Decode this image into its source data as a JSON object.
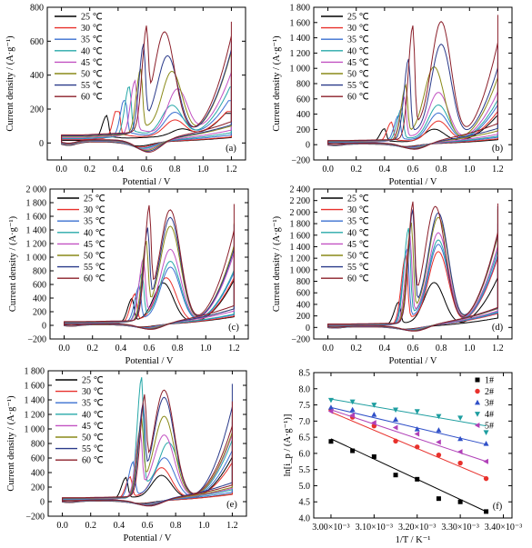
{
  "legend_labels": [
    "25 ℃",
    "30 ℃",
    "35 ℃",
    "40 ℃",
    "45 ℃",
    "50 ℃",
    "55 ℃",
    "60 ℃"
  ],
  "series_colors": [
    "#000000",
    "#e8312c",
    "#3a6fd0",
    "#27a8a8",
    "#c252c2",
    "#8a8a18",
    "#2a3a8a",
    "#8b1f2a"
  ],
  "arrhenius_colors": [
    "#000000",
    "#e8312c",
    "#3050c8",
    "#1e9ea0",
    "#b040b8"
  ],
  "arrhenius_markers": [
    "square",
    "circle",
    "triangle-up",
    "triangle-down",
    "triangle-left"
  ],
  "chart_data": [
    {
      "panel": "(a)",
      "type": "line",
      "xlabel": "Potential / V",
      "ylabel": "Current density / (A·g⁻¹)",
      "xlim": [
        -0.1,
        1.3
      ],
      "ylim": [
        -100,
        800
      ],
      "xticks": [
        "0.0",
        "0.2",
        "0.4",
        "0.6",
        "0.8",
        "1.0",
        "1.2"
      ],
      "yticks": [
        "0",
        "200",
        "400",
        "600",
        "800"
      ],
      "x_tick_values": [
        0,
        0.2,
        0.4,
        0.6,
        0.8,
        1.0,
        1.2
      ],
      "y_tick_values": [
        0,
        200,
        400,
        600,
        800
      ],
      "x_max": 1.2,
      "x_min": 0.0,
      "series": [
        {
          "name": "25 ℃",
          "p1": [
            0.32,
            140
          ],
          "p2": [
            0.85,
            40
          ],
          "end": 175,
          "rev": 30
        },
        {
          "name": "30 ℃",
          "p1": [
            0.4,
            200
          ],
          "p2": [
            0.8,
            90
          ],
          "end": 185,
          "rev": 40
        },
        {
          "name": "35 ℃",
          "p1": [
            0.45,
            240
          ],
          "p2": [
            0.8,
            130
          ],
          "end": 250,
          "rev": 50
        },
        {
          "name": "40 ℃",
          "p1": [
            0.48,
            300
          ],
          "p2": [
            0.78,
            170
          ],
          "end": 330,
          "rev": 55
        },
        {
          "name": "45 ℃",
          "p1": [
            0.52,
            320
          ],
          "p2": [
            0.82,
            260
          ],
          "end": 420,
          "rev": 65
        },
        {
          "name": "50 ℃",
          "p1": [
            0.56,
            380
          ],
          "p2": [
            0.78,
            360
          ],
          "end": 570,
          "rev": 75
        },
        {
          "name": "55 ℃",
          "p1": [
            0.58,
            500
          ],
          "p2": [
            0.75,
            445
          ],
          "end": 600,
          "rev": 85
        },
        {
          "name": "60 ℃",
          "p1": [
            0.6,
            520
          ],
          "p2": [
            0.73,
            575
          ],
          "end": 715,
          "rev": 95
        }
      ]
    },
    {
      "panel": "(b)",
      "type": "line",
      "xlabel": "Potential / V",
      "ylabel": "Current density / (A·g⁻¹)",
      "xlim": [
        -0.1,
        1.3
      ],
      "ylim": [
        -200,
        1800
      ],
      "xticks": [
        "0.0",
        "0.2",
        "0.4",
        "0.6",
        "0.8",
        "1.0",
        "1.2"
      ],
      "yticks": [
        "−200",
        "0",
        "200",
        "400",
        "600",
        "800",
        "1 000",
        "1 200",
        "1 400",
        "1 600",
        "1 800"
      ],
      "x_tick_values": [
        0,
        0.2,
        0.4,
        0.6,
        0.8,
        1.0,
        1.2
      ],
      "y_tick_values": [
        -200,
        0,
        200,
        400,
        600,
        800,
        1000,
        1200,
        1400,
        1600,
        1800
      ],
      "x_max": 1.2,
      "x_min": 0.0,
      "series": [
        {
          "name": "25 ℃",
          "p1": [
            0.4,
            180
          ],
          "p2": [
            0.75,
            160
          ],
          "end": 380,
          "rev": 40
        },
        {
          "name": "30 ℃",
          "p1": [
            0.45,
            260
          ],
          "p2": [
            0.78,
            260
          ],
          "end": 450,
          "rev": 50
        },
        {
          "name": "35 ℃",
          "p1": [
            0.5,
            340
          ],
          "p2": [
            0.78,
            360
          ],
          "end": 560,
          "rev": 60
        },
        {
          "name": "40 ℃",
          "p1": [
            0.52,
            420
          ],
          "p2": [
            0.78,
            460
          ],
          "end": 650,
          "rev": 70
        },
        {
          "name": "45 ℃",
          "p1": [
            0.54,
            560
          ],
          "p2": [
            0.78,
            620
          ],
          "end": 800,
          "rev": 80
        },
        {
          "name": "50 ℃",
          "p1": [
            0.55,
            700
          ],
          "p2": [
            0.75,
            950
          ],
          "end": 1080,
          "rev": 90
        },
        {
          "name": "55 ℃",
          "p1": [
            0.57,
            1050
          ],
          "p2": [
            0.8,
            1240
          ],
          "end": 1290,
          "rev": 100
        },
        {
          "name": "60 ℃",
          "p1": [
            0.6,
            1460
          ],
          "p2": [
            0.8,
            1530
          ],
          "end": 1700,
          "rev": 110
        }
      ]
    },
    {
      "panel": "(c)",
      "type": "line",
      "xlabel": "Potential / V",
      "ylabel": "Current density / (A·g⁻¹)",
      "xlim": [
        -0.1,
        1.3
      ],
      "ylim": [
        -200,
        2000
      ],
      "xticks": [
        "0.0",
        "0.2",
        "0.4",
        "0.6",
        "0.8",
        "1.0",
        "1.2"
      ],
      "yticks": [
        "−200",
        "0",
        "200",
        "400",
        "600",
        "800",
        "1 000",
        "1 200",
        "1 400",
        "1 600",
        "1 800",
        "2 000"
      ],
      "x_tick_values": [
        0,
        0.2,
        0.4,
        0.6,
        0.8,
        1.0,
        1.2
      ],
      "y_tick_values": [
        -200,
        0,
        200,
        400,
        600,
        800,
        1000,
        1200,
        1400,
        1600,
        1800,
        2000
      ],
      "x_max": 1.2,
      "x_min": 0.0,
      "series": [
        {
          "name": "25 ℃",
          "p1": [
            0.48,
            360
          ],
          "p2": [
            0.7,
            580
          ],
          "end": 780,
          "rev": 40
        },
        {
          "name": "30 ℃",
          "p1": [
            0.5,
            420
          ],
          "p2": [
            0.72,
            650
          ],
          "end": 830,
          "rev": 50
        },
        {
          "name": "35 ℃",
          "p1": [
            0.53,
            520
          ],
          "p2": [
            0.75,
            800
          ],
          "end": 950,
          "rev": 60
        },
        {
          "name": "40 ℃",
          "p1": [
            0.55,
            700
          ],
          "p2": [
            0.75,
            880
          ],
          "end": 1000,
          "rev": 70
        },
        {
          "name": "45 ℃",
          "p1": [
            0.56,
            900
          ],
          "p2": [
            0.75,
            1050
          ],
          "end": 1300,
          "rev": 80
        },
        {
          "name": "50 ℃",
          "p1": [
            0.58,
            1100
          ],
          "p2": [
            0.75,
            1380
          ],
          "end": 1500,
          "rev": 90
        },
        {
          "name": "55 ℃",
          "p1": [
            0.59,
            1250
          ],
          "p2": [
            0.75,
            1500
          ],
          "end": 1480,
          "rev": 100
        },
        {
          "name": "60 ℃",
          "p1": [
            0.6,
            1520
          ],
          "p2": [
            0.75,
            1600
          ],
          "end": 1780,
          "rev": 110
        }
      ]
    },
    {
      "panel": "(d)",
      "type": "line",
      "xlabel": "Potential / V",
      "ylabel": "Current density / (A·g⁻¹)",
      "xlim": [
        -0.1,
        1.3
      ],
      "ylim": [
        -200,
        2400
      ],
      "xticks": [
        "0.0",
        "0.2",
        "0.4",
        "0.6",
        "0.8",
        "1.0",
        "1.2"
      ],
      "yticks": [
        "−200",
        "0",
        "200",
        "400",
        "600",
        "800",
        "1 000",
        "1 200",
        "1 400",
        "1 600",
        "1 800",
        "2 000",
        "2 200",
        "2 400"
      ],
      "x_tick_values": [
        0,
        0.2,
        0.4,
        0.6,
        0.8,
        1.0,
        1.2
      ],
      "y_tick_values": [
        -200,
        0,
        200,
        400,
        600,
        800,
        1000,
        1200,
        1400,
        1600,
        1800,
        2000,
        2200,
        2400
      ],
      "x_max": 1.2,
      "x_min": 0.0,
      "series": [
        {
          "name": "25 ℃",
          "p1": [
            0.5,
            400
          ],
          "p2": [
            0.75,
            730
          ],
          "end": 1020,
          "rev": 50
        },
        {
          "name": "30 ℃",
          "p1": [
            0.55,
            1200
          ],
          "p2": [
            0.78,
            1260
          ],
          "end": 1520,
          "rev": 60
        },
        {
          "name": "35 ℃",
          "p1": [
            0.56,
            1300
          ],
          "p2": [
            0.78,
            1380
          ],
          "end": 1600,
          "rev": 70
        },
        {
          "name": "40 ℃",
          "p1": [
            0.57,
            1650
          ],
          "p2": [
            0.78,
            1450
          ],
          "end": 1700,
          "rev": 80
        },
        {
          "name": "45 ℃",
          "p1": [
            0.58,
            1500
          ],
          "p2": [
            0.78,
            1570
          ],
          "end": 1800,
          "rev": 90
        },
        {
          "name": "50 ℃",
          "p1": [
            0.59,
            1700
          ],
          "p2": [
            0.78,
            1830
          ],
          "end": 2050,
          "rev": 100
        },
        {
          "name": "55 ℃",
          "p1": [
            0.6,
            1900
          ],
          "p2": [
            0.78,
            1900
          ],
          "end": 2100,
          "rev": 110
        },
        {
          "name": "60 ℃",
          "p1": [
            0.6,
            1950
          ],
          "p2": [
            0.76,
            2000
          ],
          "end": 2150,
          "rev": 120
        }
      ]
    },
    {
      "panel": "(e)",
      "type": "line",
      "xlabel": "Potential / V",
      "ylabel": "Current density / (A·g⁻¹)",
      "xlim": [
        -0.1,
        1.3
      ],
      "ylim": [
        -200,
        1800
      ],
      "xticks": [
        "0.0",
        "0.2",
        "0.4",
        "0.6",
        "0.8",
        "1.0",
        "1.2"
      ],
      "yticks": [
        "−200",
        "0",
        "200",
        "400",
        "600",
        "800",
        "1 000",
        "1 200",
        "1 400",
        "1 600",
        "1 800"
      ],
      "x_tick_values": [
        0,
        0.2,
        0.4,
        0.6,
        0.8,
        1.0,
        1.2
      ],
      "y_tick_values": [
        -200,
        0,
        200,
        400,
        600,
        800,
        1000,
        1200,
        1400,
        1600,
        1800
      ],
      "x_max": 1.2,
      "x_min": 0.0,
      "series": [
        {
          "name": "25 ℃",
          "p1": [
            0.45,
            300
          ],
          "p2": [
            0.7,
            320
          ],
          "end": 650,
          "rev": 40
        },
        {
          "name": "30 ℃",
          "p1": [
            0.48,
            300
          ],
          "p2": [
            0.7,
            420
          ],
          "end": 600,
          "rev": 50
        },
        {
          "name": "35 ℃",
          "p1": [
            0.5,
            500
          ],
          "p2": [
            0.72,
            550
          ],
          "end": 800,
          "rev": 60
        },
        {
          "name": "40 ℃",
          "p1": [
            0.56,
            1640
          ],
          "p2": [
            0.75,
            750
          ],
          "end": 1000,
          "rev": 70
        },
        {
          "name": "45 ℃",
          "p1": [
            0.55,
            900
          ],
          "p2": [
            0.72,
            850
          ],
          "end": 1100,
          "rev": 80
        },
        {
          "name": "50 ℃",
          "p1": [
            0.56,
            1000
          ],
          "p2": [
            0.72,
            1100
          ],
          "end": 1200,
          "rev": 90
        },
        {
          "name": "55 ℃",
          "p1": [
            0.57,
            1150
          ],
          "p2": [
            0.72,
            1350
          ],
          "end": 1620,
          "rev": 100
        },
        {
          "name": "60 ℃",
          "p1": [
            0.58,
            1200
          ],
          "p2": [
            0.72,
            1440
          ],
          "end": 1380,
          "rev": 110
        }
      ]
    },
    {
      "panel": "(f)",
      "type": "scatter",
      "xlabel": "1/T / K⁻¹",
      "ylabel": "ln[i_p / (A·g⁻¹)]",
      "xlim": [
        0.00296,
        0.00342
      ],
      "ylim": [
        4.0,
        8.5
      ],
      "xticks": [
        "3.00×10⁻³",
        "3.10×10⁻³",
        "3.20×10⁻³",
        "3.30×10⁻³",
        "3.40×10⁻³"
      ],
      "x_tick_values": [
        0.003,
        0.0031,
        0.0032,
        0.0033,
        0.0034
      ],
      "yticks": [
        "4.0",
        "4.5",
        "5.0",
        "5.5",
        "6.0",
        "6.5",
        "7.0",
        "7.5",
        "8.0",
        "8.5"
      ],
      "y_tick_values": [
        4.0,
        4.5,
        5.0,
        5.5,
        6.0,
        6.5,
        7.0,
        7.5,
        8.0,
        8.5
      ],
      "x": [
        0.003,
        0.00305,
        0.0031,
        0.00315,
        0.0032,
        0.00325,
        0.0033,
        0.00336
      ],
      "series": [
        {
          "name": "1#",
          "values": [
            6.37,
            6.08,
            5.9,
            5.33,
            5.2,
            4.6,
            4.5,
            4.2
          ],
          "fit": [
            6.45,
            4.2
          ]
        },
        {
          "name": "2#",
          "values": [
            7.35,
            7.12,
            6.85,
            6.38,
            6.2,
            5.95,
            5.7,
            5.22
          ],
          "fit": [
            7.28,
            5.25
          ]
        },
        {
          "name": "3#",
          "values": [
            7.42,
            7.35,
            7.2,
            7.05,
            6.75,
            6.72,
            6.45,
            6.3
          ],
          "fit": [
            7.42,
            6.28
          ]
        },
        {
          "name": "4#",
          "values": [
            7.65,
            7.6,
            7.5,
            7.35,
            7.3,
            7.15,
            7.1,
            6.65
          ],
          "fit": [
            7.68,
            6.85
          ]
        },
        {
          "name": "5#",
          "values": [
            7.3,
            7.18,
            6.95,
            6.8,
            6.6,
            6.35,
            6.05,
            5.75
          ],
          "fit": [
            7.35,
            5.75
          ]
        }
      ]
    }
  ]
}
